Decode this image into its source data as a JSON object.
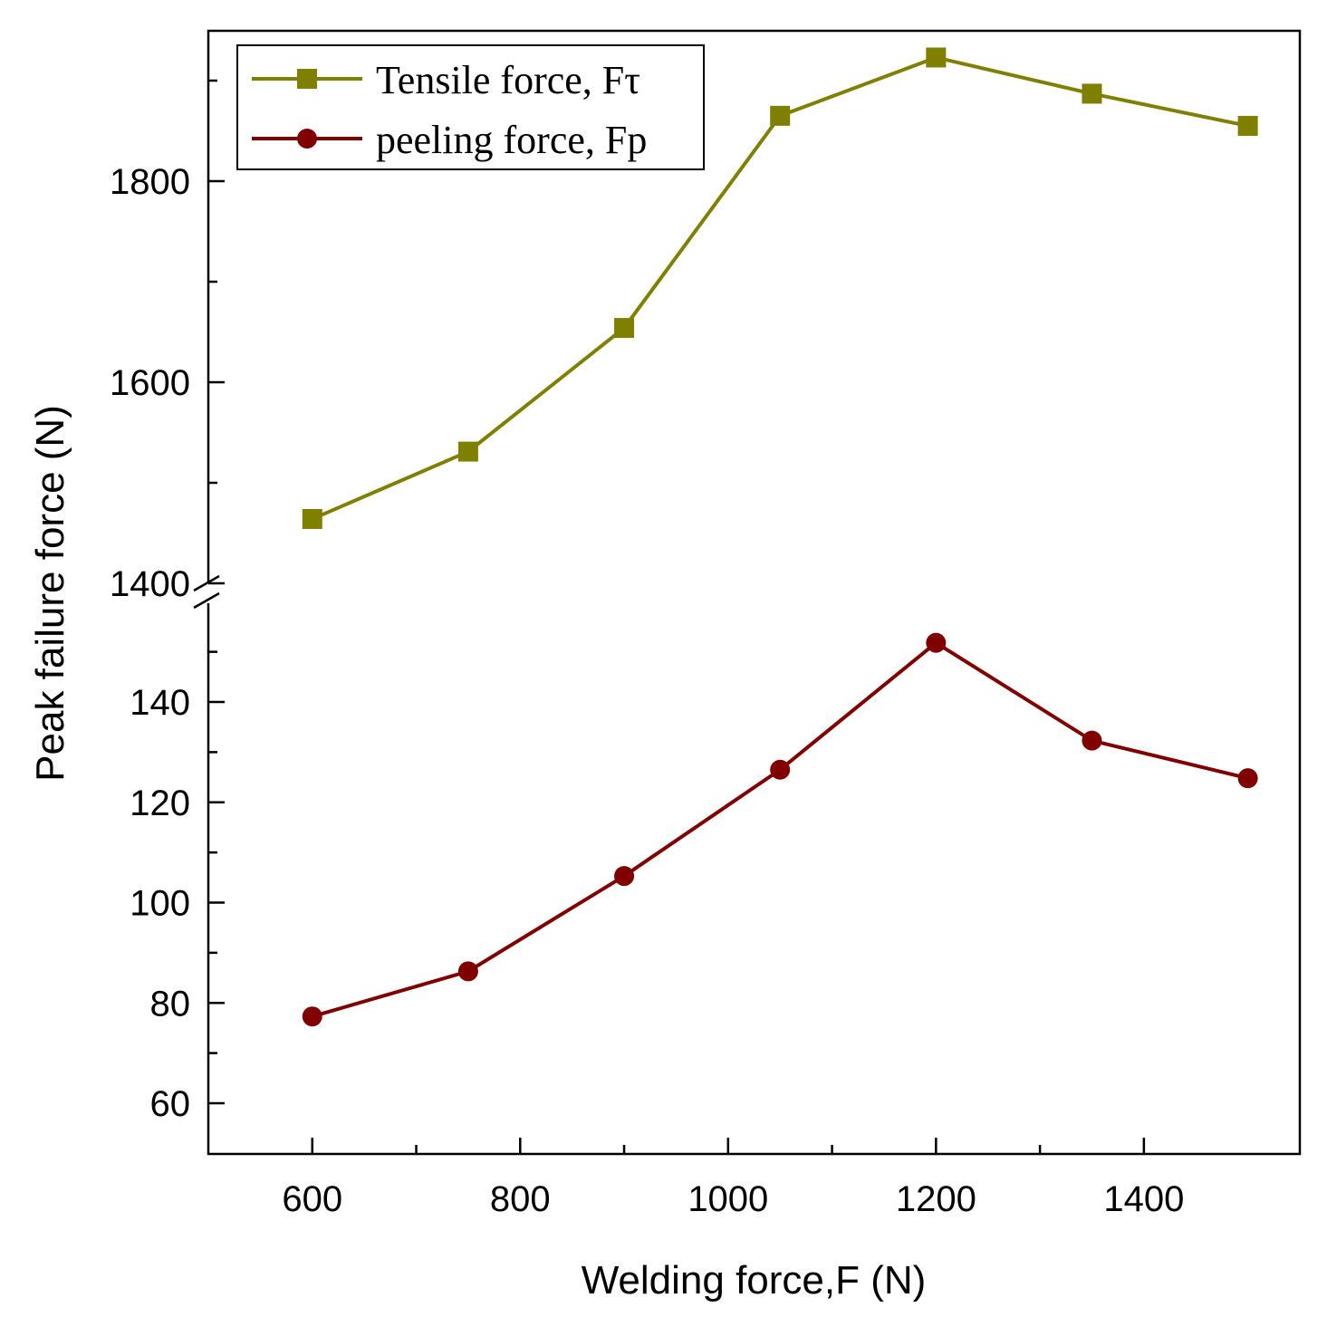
{
  "chart_data": {
    "type": "line",
    "title": "",
    "xlabel": "Welding force,F (N)",
    "ylabel": "Peak failure force (N)",
    "axis_break": true,
    "x": [
      600,
      750,
      900,
      1050,
      1200,
      1350,
      1500
    ],
    "xlim": [
      500,
      1550
    ],
    "xticks": [
      600,
      800,
      1000,
      1200,
      1400
    ],
    "x_minor_ticks": [
      700,
      900,
      1100,
      1300
    ],
    "upper_ylim": [
      1400,
      1930
    ],
    "upper_yticks": [
      1400,
      1600,
      1800
    ],
    "upper_y_minor_ticks": [
      1500,
      1700,
      1900
    ],
    "lower_ylim": [
      50,
      160
    ],
    "lower_yticks": [
      60,
      80,
      100,
      120,
      140
    ],
    "lower_y_minor_ticks": [
      70,
      90,
      110,
      130,
      150
    ],
    "legend_position": "top-left",
    "series": [
      {
        "name": "Tensile force, Fτ",
        "segment": "upper",
        "marker": "square",
        "color": "#808000",
        "values": [
          1464,
          1531,
          1654,
          1865,
          1923,
          1887,
          1855
        ]
      },
      {
        "name": "peeling force, Fp",
        "segment": "lower",
        "marker": "circle",
        "color": "#800000",
        "values": [
          77.3,
          86.3,
          105.3,
          126.5,
          151.8,
          132.3,
          124.8
        ]
      }
    ]
  }
}
